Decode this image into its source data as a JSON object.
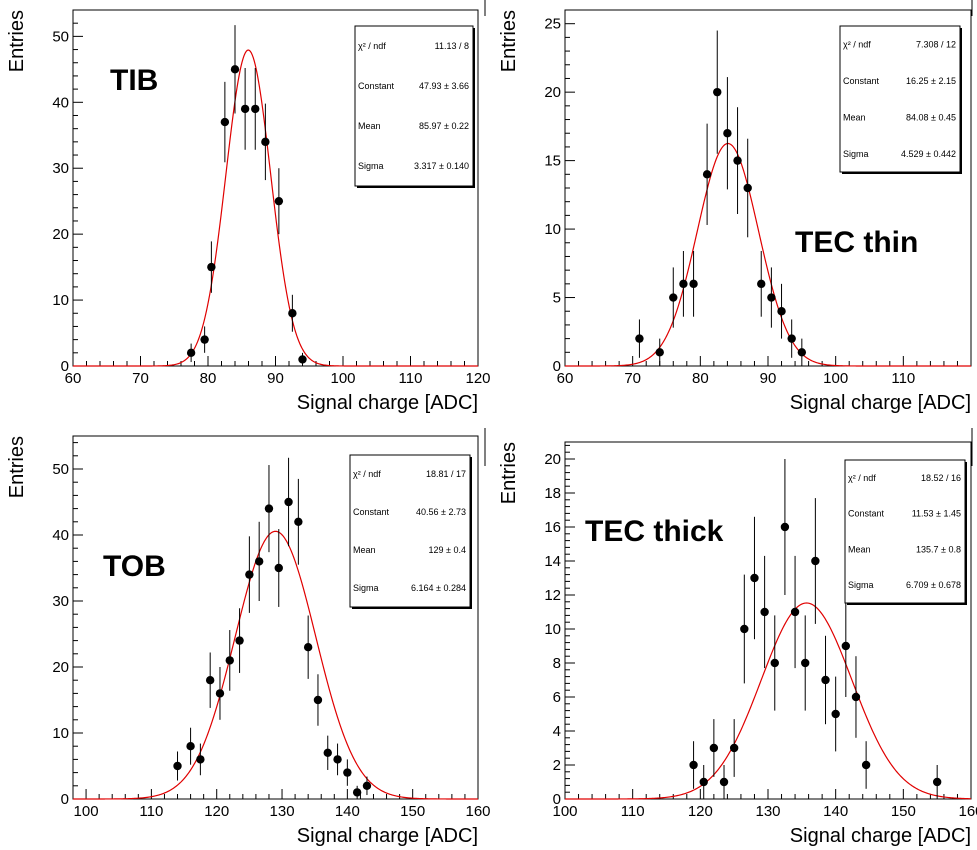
{
  "chart_data": [
    {
      "type": "scatter",
      "label": "TIB",
      "xlabel": "Signal charge [ADC]",
      "ylabel": "Entries",
      "xlim": [
        60,
        120
      ],
      "ylim": [
        0,
        54
      ],
      "xticks": [
        60,
        70,
        80,
        90,
        100,
        110,
        120
      ],
      "yticks": [
        0,
        10,
        20,
        30,
        40,
        50
      ],
      "points": [
        {
          "x": 77.5,
          "y": 2,
          "err": 1.4
        },
        {
          "x": 79.5,
          "y": 4,
          "err": 2.0
        },
        {
          "x": 80.5,
          "y": 15,
          "err": 3.9
        },
        {
          "x": 82.5,
          "y": 37,
          "err": 6.1
        },
        {
          "x": 84.0,
          "y": 45,
          "err": 6.7
        },
        {
          "x": 85.5,
          "y": 39,
          "err": 6.2
        },
        {
          "x": 87.0,
          "y": 39,
          "err": 6.2
        },
        {
          "x": 88.5,
          "y": 34,
          "err": 5.8
        },
        {
          "x": 90.5,
          "y": 25,
          "err": 5.0
        },
        {
          "x": 92.5,
          "y": 8,
          "err": 2.8
        },
        {
          "x": 94.0,
          "y": 1,
          "err": 1.0
        }
      ],
      "fit": {
        "constant": 47.93,
        "mean": 85.97,
        "sigma": 3.317
      },
      "stats": [
        {
          "name": "χ² / ndf",
          "value": "11.13 / 8"
        },
        {
          "name": "Constant",
          "value": "47.93 ± 3.66"
        },
        {
          "name": "Mean",
          "value": "85.97 ± 0.22"
        },
        {
          "name": "Sigma",
          "value": "3.317 ± 0.140"
        }
      ]
    },
    {
      "type": "scatter",
      "label": "TEC thin",
      "xlabel": "Signal charge [ADC]",
      "ylabel": "Entries",
      "xlim": [
        60,
        120
      ],
      "ylim": [
        0,
        26
      ],
      "xticks": [
        60,
        70,
        80,
        90,
        100,
        110
      ],
      "yticks": [
        0,
        5,
        10,
        15,
        20,
        25
      ],
      "points": [
        {
          "x": 71,
          "y": 2,
          "err": 1.4
        },
        {
          "x": 74,
          "y": 1,
          "err": 1.0
        },
        {
          "x": 76,
          "y": 5,
          "err": 2.2
        },
        {
          "x": 77.5,
          "y": 6,
          "err": 2.4
        },
        {
          "x": 79,
          "y": 6,
          "err": 2.4
        },
        {
          "x": 81,
          "y": 14,
          "err": 3.7
        },
        {
          "x": 82.5,
          "y": 20,
          "err": 4.5
        },
        {
          "x": 84,
          "y": 17,
          "err": 4.1
        },
        {
          "x": 85.5,
          "y": 15,
          "err": 3.9
        },
        {
          "x": 87,
          "y": 13,
          "err": 3.6
        },
        {
          "x": 89,
          "y": 6,
          "err": 2.4
        },
        {
          "x": 90.5,
          "y": 5,
          "err": 2.2
        },
        {
          "x": 92,
          "y": 4,
          "err": 2.0
        },
        {
          "x": 93.5,
          "y": 2,
          "err": 1.4
        },
        {
          "x": 95,
          "y": 1,
          "err": 1.0
        }
      ],
      "fit": {
        "constant": 16.25,
        "mean": 84.08,
        "sigma": 4.529
      },
      "stats": [
        {
          "name": "χ² / ndf",
          "value": "7.308 / 12"
        },
        {
          "name": "Constant",
          "value": "16.25 ± 2.15"
        },
        {
          "name": "Mean",
          "value": "84.08 ± 0.45"
        },
        {
          "name": "Sigma",
          "value": "4.529 ± 0.442"
        }
      ]
    },
    {
      "type": "scatter",
      "label": "TOB",
      "xlabel": "Signal charge [ADC]",
      "ylabel": "Entries",
      "xlim": [
        98,
        160
      ],
      "ylim": [
        0,
        55
      ],
      "xticks": [
        100,
        110,
        120,
        130,
        140,
        150,
        160
      ],
      "yticks": [
        0,
        10,
        20,
        30,
        40,
        50
      ],
      "points": [
        {
          "x": 114,
          "y": 5,
          "err": 2.2
        },
        {
          "x": 116,
          "y": 8,
          "err": 2.8
        },
        {
          "x": 117.5,
          "y": 6,
          "err": 2.4
        },
        {
          "x": 119,
          "y": 18,
          "err": 4.2
        },
        {
          "x": 120.5,
          "y": 16,
          "err": 4.0
        },
        {
          "x": 122,
          "y": 21,
          "err": 4.6
        },
        {
          "x": 123.5,
          "y": 24,
          "err": 4.9
        },
        {
          "x": 125,
          "y": 34,
          "err": 5.8
        },
        {
          "x": 126.5,
          "y": 36,
          "err": 6.0
        },
        {
          "x": 128,
          "y": 44,
          "err": 6.6
        },
        {
          "x": 129.5,
          "y": 35,
          "err": 5.9
        },
        {
          "x": 131,
          "y": 45,
          "err": 6.7
        },
        {
          "x": 132.5,
          "y": 42,
          "err": 6.5
        },
        {
          "x": 134,
          "y": 23,
          "err": 4.8
        },
        {
          "x": 135.5,
          "y": 15,
          "err": 3.9
        },
        {
          "x": 137,
          "y": 7,
          "err": 2.6
        },
        {
          "x": 138.5,
          "y": 6,
          "err": 2.4
        },
        {
          "x": 140,
          "y": 4,
          "err": 2.0
        },
        {
          "x": 141.5,
          "y": 1,
          "err": 1.0
        },
        {
          "x": 143,
          "y": 2,
          "err": 1.4
        }
      ],
      "fit": {
        "constant": 40.56,
        "mean": 129,
        "sigma": 6.164
      },
      "stats": [
        {
          "name": "χ² / ndf",
          "value": "18.81 / 17"
        },
        {
          "name": "Constant",
          "value": "40.56 ± 2.73"
        },
        {
          "name": "Mean",
          "value": "129 ± 0.4"
        },
        {
          "name": "Sigma",
          "value": "6.164 ± 0.284"
        }
      ]
    },
    {
      "type": "scatter",
      "label": "TEC thick",
      "xlabel": "Signal charge [ADC]",
      "ylabel": "Entries",
      "xlim": [
        100,
        160
      ],
      "ylim": [
        0,
        21
      ],
      "xticks": [
        100,
        110,
        120,
        130,
        140,
        150,
        160
      ],
      "yticks": [
        0,
        2,
        4,
        6,
        8,
        10,
        12,
        14,
        16,
        18,
        20
      ],
      "points": [
        {
          "x": 119,
          "y": 2,
          "err": 1.4
        },
        {
          "x": 120.5,
          "y": 1,
          "err": 1.0
        },
        {
          "x": 122,
          "y": 3,
          "err": 1.7
        },
        {
          "x": 123.5,
          "y": 1,
          "err": 1.0
        },
        {
          "x": 125,
          "y": 3,
          "err": 1.7
        },
        {
          "x": 126.5,
          "y": 10,
          "err": 3.2
        },
        {
          "x": 128,
          "y": 13,
          "err": 3.6
        },
        {
          "x": 129.5,
          "y": 11,
          "err": 3.3
        },
        {
          "x": 131,
          "y": 8,
          "err": 2.8
        },
        {
          "x": 132.5,
          "y": 16,
          "err": 4.0
        },
        {
          "x": 134,
          "y": 11,
          "err": 3.3
        },
        {
          "x": 135.5,
          "y": 8,
          "err": 2.8
        },
        {
          "x": 137,
          "y": 14,
          "err": 3.7
        },
        {
          "x": 138.5,
          "y": 7,
          "err": 2.6
        },
        {
          "x": 140,
          "y": 5,
          "err": 2.2
        },
        {
          "x": 141.5,
          "y": 9,
          "err": 3.0
        },
        {
          "x": 143,
          "y": 6,
          "err": 2.4
        },
        {
          "x": 144.5,
          "y": 2,
          "err": 1.4
        },
        {
          "x": 155,
          "y": 1,
          "err": 1.0
        }
      ],
      "fit": {
        "constant": 11.53,
        "mean": 135.7,
        "sigma": 6.709
      },
      "stats": [
        {
          "name": "χ² / ndf",
          "value": "18.52 / 16"
        },
        {
          "name": "Constant",
          "value": "11.53 ± 1.45"
        },
        {
          "name": "Mean",
          "value": "135.7 ± 0.8"
        },
        {
          "name": "Sigma",
          "value": "6.709 ± 0.678"
        }
      ]
    }
  ]
}
